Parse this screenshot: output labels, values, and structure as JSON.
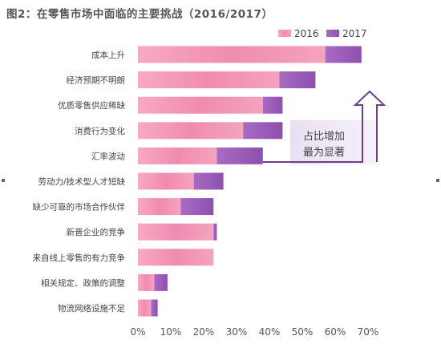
{
  "title": "图2：在零售市场中面临的主要挑战（2016/2017）",
  "legend": [
    {
      "name": "2016",
      "color": "#f08cb0"
    },
    {
      "name": "2017",
      "color": "#9a5bb8"
    }
  ],
  "callout": {
    "lines": [
      "占比增加",
      "最为显著"
    ]
  },
  "chart_data": {
    "type": "bar",
    "orientation": "horizontal",
    "stacked": true,
    "title": "图2：在零售市场中面临的主要挑战（2016/2017）",
    "categories": [
      "成本上升",
      "经济预期不明朗",
      "优质零售供应稀缺",
      "消费行为变化",
      "汇率波动",
      "劳动力/技术型人才短缺",
      "缺少可靠的市场合作伙伴",
      "新晋企业的竞争",
      "来自线上零售的有力竞争",
      "相关规定、政策的调整",
      "物流网络设施不足"
    ],
    "series": [
      {
        "name": "2016",
        "values": [
          57,
          43,
          38,
          32,
          24,
          17,
          13,
          23,
          23,
          5,
          4
        ]
      },
      {
        "name": "2017",
        "values": [
          11,
          11,
          6,
          12,
          14,
          9,
          10,
          1,
          0,
          4,
          2
        ]
      }
    ],
    "xticks": [
      "0%",
      "10%",
      "20%",
      "30%",
      "40%",
      "50%",
      "60%",
      "70%"
    ],
    "xlim": [
      0,
      70
    ],
    "grid": false,
    "legend_position": "top-right"
  }
}
